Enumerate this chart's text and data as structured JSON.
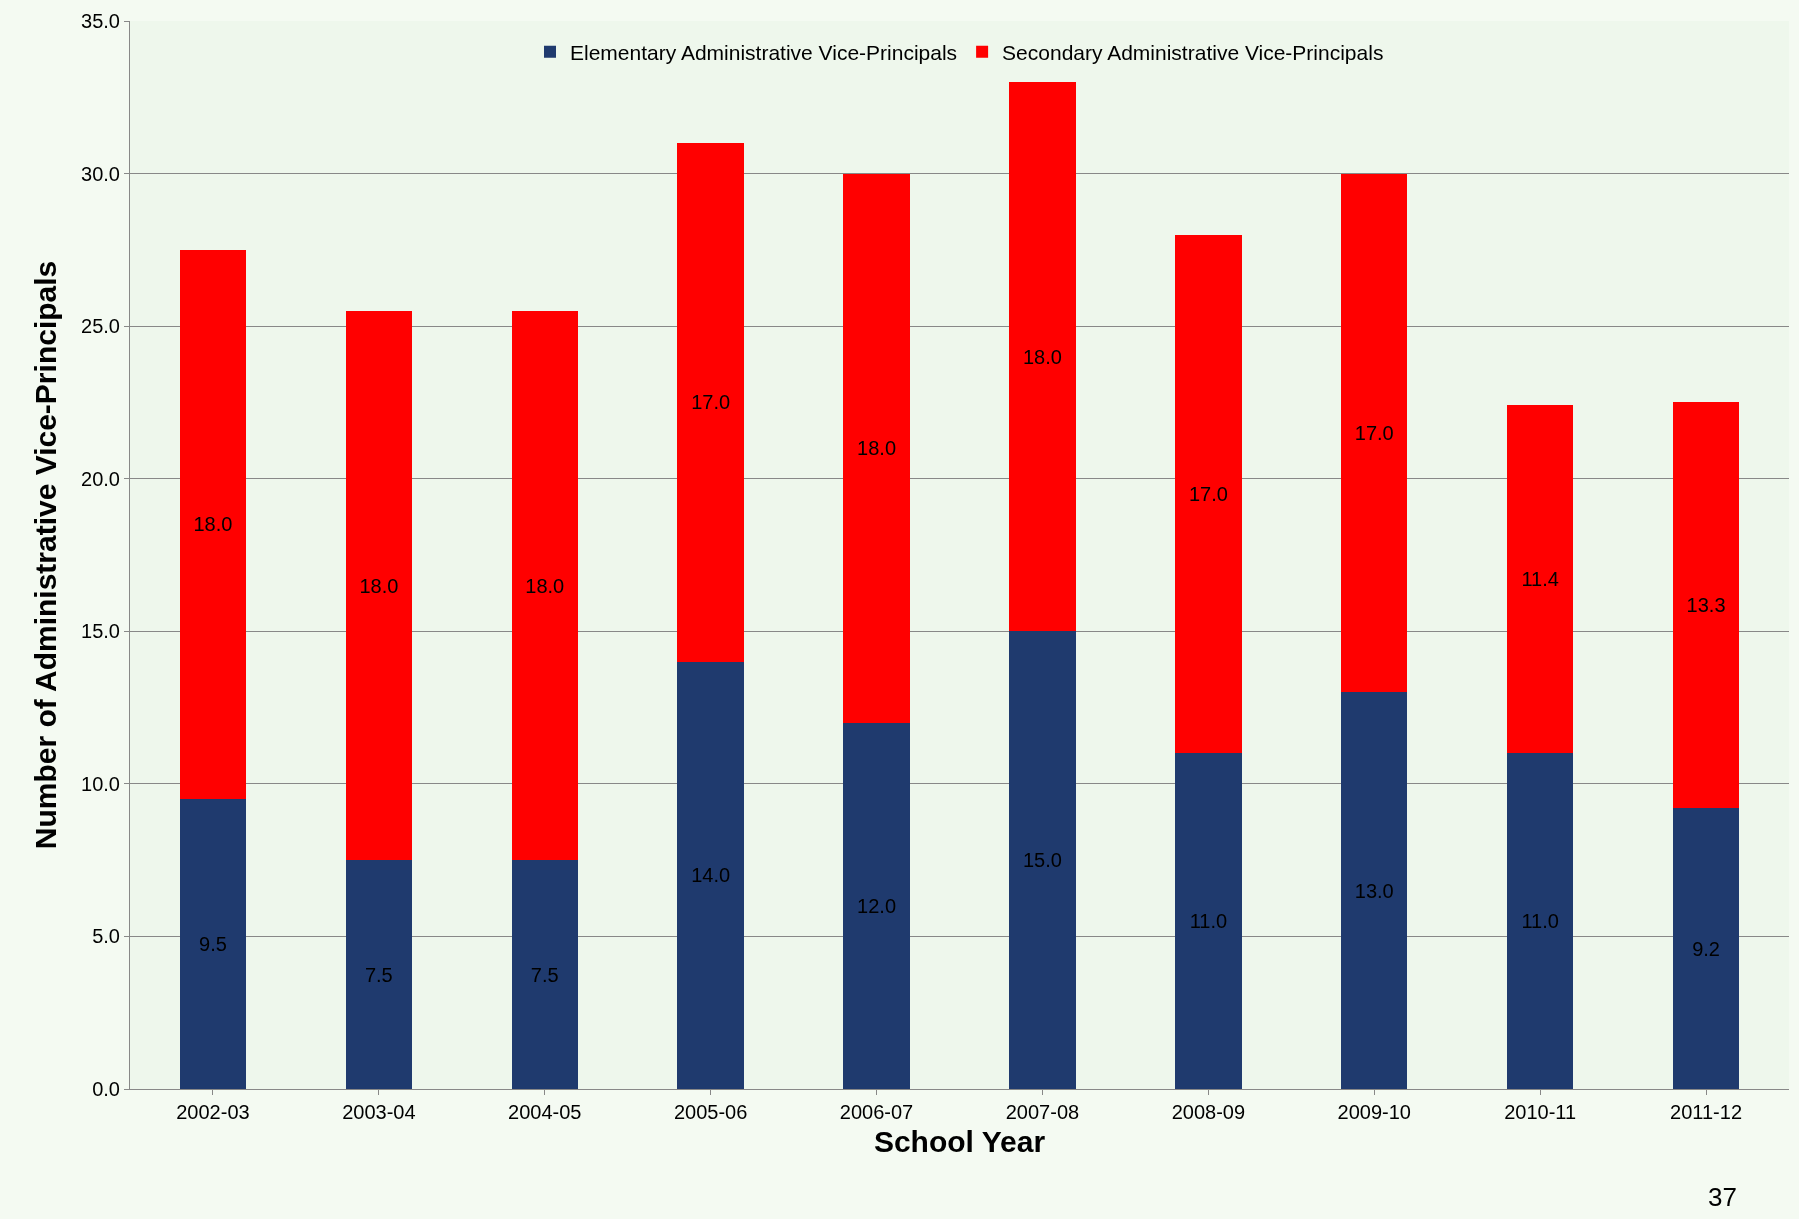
{
  "chart_data": {
    "type": "bar",
    "stacked": true,
    "xlabel": "School Year",
    "ylabel": "Number of Administrative Vice-Principals",
    "categories": [
      "2002-03",
      "2003-04",
      "2004-05",
      "2005-06",
      "2006-07",
      "2007-08",
      "2008-09",
      "2009-10",
      "2010-11",
      "2011-12"
    ],
    "series": [
      {
        "name": "Elementary Administrative Vice-Principals",
        "color": "#1f3a6e",
        "values": [
          9.5,
          7.5,
          7.5,
          14.0,
          12.0,
          15.0,
          11.0,
          13.0,
          11.0,
          9.2
        ],
        "value_labels": [
          "9.5",
          "7.5",
          "7.5",
          "14.0",
          "12.0",
          "15.0",
          "11.0",
          "13.0",
          "11.0",
          "9.2"
        ]
      },
      {
        "name": "Secondary Administrative Vice-Principals",
        "color": "#ff0000",
        "values": [
          18.0,
          18.0,
          18.0,
          17.0,
          18.0,
          18.0,
          17.0,
          17.0,
          11.4,
          13.3
        ],
        "value_labels": [
          "18.0",
          "18.0",
          "18.0",
          "17.0",
          "18.0",
          "18.0",
          "17.0",
          "17.0",
          "11.4",
          "13.3"
        ]
      }
    ],
    "ylim": [
      0,
      35
    ],
    "yticks": [
      {
        "value": 0,
        "label": "0.0"
      },
      {
        "value": 5,
        "label": "5.0"
      },
      {
        "value": 10,
        "label": "10.0"
      },
      {
        "value": 15,
        "label": "15.0"
      },
      {
        "value": 20,
        "label": "20.0"
      },
      {
        "value": 25,
        "label": "25.0"
      },
      {
        "value": 30,
        "label": "30.0"
      },
      {
        "value": 35,
        "label": "35.0"
      }
    ],
    "grid": "y",
    "legend": "top",
    "annotations": [
      "37"
    ]
  }
}
